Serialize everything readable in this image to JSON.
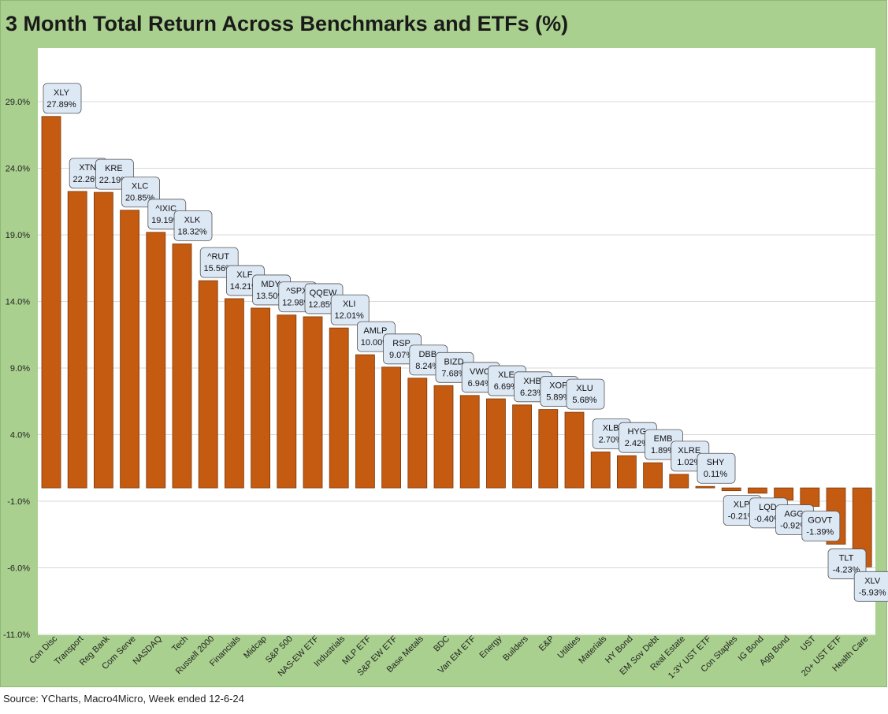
{
  "title": "3 Month Total Return Across Benchmarks and ETFs (%)",
  "source": "Source: YCharts, Macro4Micro, Week ended 12-6-24",
  "colors": {
    "bar": "#c55a11",
    "bar_border": "#7a3a0a",
    "frame": "#a9d08e",
    "label_fill": "#dde8f5",
    "grid": "#d9d9d9"
  },
  "chart_data": {
    "type": "bar",
    "title": "3 Month Total Return Across Benchmarks and ETFs (%)",
    "xlabel": "",
    "ylabel": "",
    "ylim": [
      -11,
      32
    ],
    "yticks": [
      29,
      24,
      19,
      14,
      9,
      4,
      -1,
      -6,
      -11
    ],
    "ytick_labels": [
      "29.0%",
      "24.0%",
      "19.0%",
      "14.0%",
      "9.0%",
      "4.0%",
      "-1.0%",
      "-6.0%",
      "-11.0%"
    ],
    "grid": true,
    "categories": [
      "Con Disc",
      "Transport",
      "Reg Bank",
      "Com Serve",
      "NASDAQ",
      "Tech",
      "Russell 2000",
      "Financials",
      "Midcap",
      "S&P 500",
      "NAS-EW ETF",
      "Industrials",
      "MLP ETF",
      "S&P EW ETF",
      "Base Metals",
      "BDC",
      "Van EM ETF",
      "Energy",
      "Builders",
      "E&P",
      "Utilities",
      "Materials",
      "HY Bond",
      "EM Sov Debt",
      "Real Estate",
      "1-3Y UST ETF",
      "Con Staples",
      "IG Bond",
      "Agg Bond",
      "UST",
      "20+ UST ETF",
      "Health Care"
    ],
    "tickers": [
      "XLY",
      "XTN",
      "KRE",
      "XLC",
      "^IXIC",
      "XLK",
      "^RUT",
      "XLF",
      "MDY",
      "^SPX",
      "QQEW",
      "XLI",
      "AMLP",
      "RSP",
      "DBB",
      "BIZD",
      "VWO",
      "XLE",
      "XHB",
      "XOP",
      "XLU",
      "XLB",
      "HYG",
      "EMB",
      "XLRE",
      "SHY",
      "XLP",
      "LQD",
      "AGG",
      "GOVT",
      "TLT",
      "XLV"
    ],
    "value_labels": [
      "27.89%",
      "22.26%",
      "22.19%",
      "20.85%",
      "19.19%",
      "18.32%",
      "15.56%",
      "14.21%",
      "13.50%",
      "12.98%",
      "12.85%",
      "12.01%",
      "10.00%",
      "9.07%",
      "8.24%",
      "7.68%",
      "6.94%",
      "6.69%",
      "6.23%",
      "5.89%",
      "5.68%",
      "2.70%",
      "2.42%",
      "1.89%",
      "1.02%",
      "0.11%",
      "-0.21%",
      "-0.40%",
      "-0.92%",
      "-1.39%",
      "-4.23%",
      "-5.93%"
    ],
    "values": [
      27.89,
      22.26,
      22.19,
      20.85,
      19.19,
      18.32,
      15.56,
      14.21,
      13.5,
      12.98,
      12.85,
      12.01,
      10.0,
      9.07,
      8.24,
      7.68,
      6.94,
      6.69,
      6.23,
      5.89,
      5.68,
      2.7,
      2.42,
      1.89,
      1.02,
      0.11,
      -0.21,
      -0.4,
      -0.92,
      -1.39,
      -4.23,
      -5.93
    ]
  }
}
